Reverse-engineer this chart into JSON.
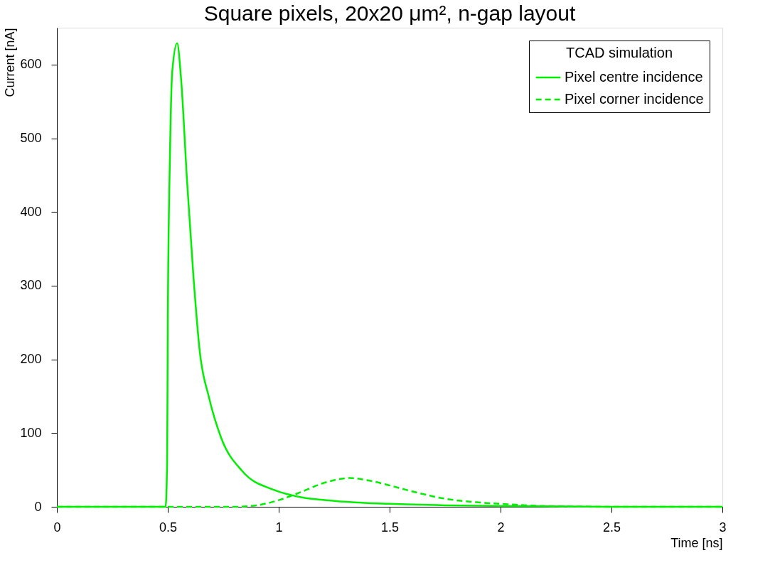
{
  "chart_data": {
    "type": "line",
    "title": "Square pixels, 20x20 μm², n-gap layout",
    "xlabel": "Time [ns]",
    "ylabel": "Current [nA]",
    "legend_title": "TCAD simulation",
    "legend": "top right",
    "grid": false,
    "marker": "none",
    "xlim": [
      0,
      3
    ],
    "ylim": [
      0,
      650
    ],
    "xticks": [
      0,
      0.5,
      1,
      1.5,
      2,
      2.5,
      3
    ],
    "yticks": [
      0,
      100,
      200,
      300,
      400,
      500,
      600
    ],
    "series": [
      {
        "name": "Pixel centre incidence",
        "color": "#00ee00",
        "line_style": "solid",
        "x": [
          0,
          0.49,
          0.497,
          0.5,
          0.51,
          0.52,
          0.542,
          0.56,
          0.587,
          0.615,
          0.644,
          0.686,
          0.74,
          0.837,
          0.978,
          1.1,
          1.25,
          1.5,
          1.75,
          2,
          2.5,
          3
        ],
        "values": [
          0,
          0,
          60,
          250,
          480,
          590,
          629,
          580,
          441,
          315,
          211,
          148,
          94,
          48,
          23,
          13,
          8,
          4,
          2,
          1,
          0,
          0
        ]
      },
      {
        "name": "Pixel corner incidence",
        "color": "#00ee00",
        "line_style": "dashed",
        "x": [
          0,
          0.8,
          0.9,
          1,
          1.1,
          1.2,
          1.32,
          1.4,
          1.5,
          1.6,
          1.75,
          1.9,
          2,
          2.2,
          2.5,
          3
        ],
        "values": [
          0,
          0,
          2,
          9,
          20,
          32,
          39,
          36,
          29,
          21,
          11,
          6,
          4,
          1,
          0,
          0
        ]
      }
    ]
  }
}
